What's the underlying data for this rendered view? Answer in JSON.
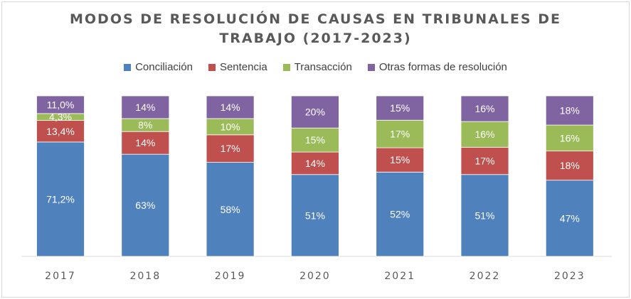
{
  "chart_data": {
    "type": "bar",
    "stacked": true,
    "title": "MODOS DE RESOLUCIÓN DE CAUSAS EN TRIBUNALES DE TRABAJO (2017-2023)",
    "title_lines": [
      "MODOS DE RESOLUCIÓN DE CAUSAS EN TRIBUNALES DE",
      "TRABAJO (2017-2023)"
    ],
    "categories": [
      "2017",
      "2018",
      "2019",
      "2020",
      "2021",
      "2022",
      "2023"
    ],
    "legend_position": "top",
    "grid": false,
    "ylim": [
      0,
      100
    ],
    "series": [
      {
        "name": "Conciliación",
        "color": "#4f81bd",
        "values": [
          71.2,
          63,
          58,
          51,
          52,
          51,
          47
        ],
        "labels": [
          "71,2%",
          "63%",
          "58%",
          "51%",
          "52%",
          "51%",
          "47%"
        ]
      },
      {
        "name": "Sentencia",
        "color": "#c0504d",
        "values": [
          13.4,
          14,
          17,
          14,
          15,
          17,
          18
        ],
        "labels": [
          "13,4%",
          "14%",
          "17%",
          "14%",
          "15%",
          "17%",
          "18%"
        ]
      },
      {
        "name": "Transacción",
        "color": "#9bbb59",
        "values": [
          4.3,
          8,
          10,
          15,
          17,
          16,
          16
        ],
        "labels": [
          "4,3%",
          "8%",
          "10%",
          "15%",
          "17%",
          "16%",
          "16%"
        ]
      },
      {
        "name": "Otras formas de resolución",
        "color": "#8064a2",
        "values": [
          11.0,
          14,
          14,
          20,
          15,
          16,
          18
        ],
        "labels": [
          "11,0%",
          "14%",
          "14%",
          "20%",
          "15%",
          "16%",
          "18%"
        ]
      }
    ]
  }
}
